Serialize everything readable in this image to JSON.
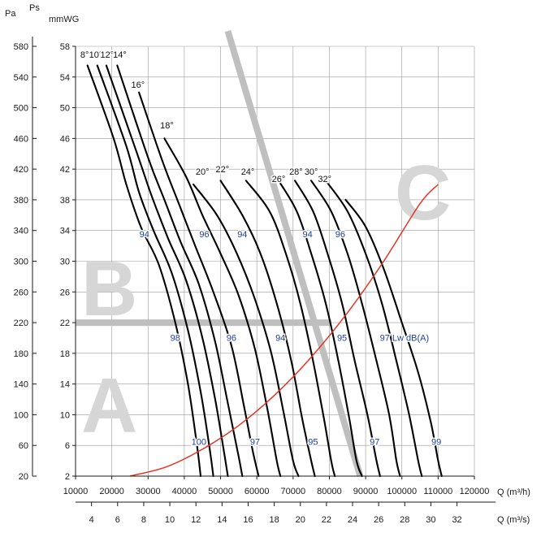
{
  "chart_data": {
    "type": "line",
    "axis_labels": {
      "pa_unit": "Pa",
      "ps_unit": "Ps",
      "mmwg_unit": "mmWG",
      "q_m3h_unit": "Q (m³/h)",
      "q_m3s_unit": "Q (m³/s)"
    },
    "x_m3h": {
      "min": 10000,
      "max": 120000,
      "ticks": [
        10000,
        20000,
        30000,
        40000,
        50000,
        60000,
        70000,
        80000,
        90000,
        100000,
        110000,
        120000
      ]
    },
    "x_m3s_ticks": [
      4,
      6,
      8,
      10,
      12,
      14,
      16,
      18,
      20,
      22,
      24,
      26,
      28,
      30,
      32
    ],
    "y_mmwg": {
      "min": 2,
      "max": 58,
      "ticks": [
        2,
        6,
        10,
        14,
        18,
        22,
        26,
        30,
        34,
        38,
        42,
        46,
        50,
        54,
        58
      ]
    },
    "y_pa_ticks": [
      20,
      60,
      100,
      140,
      180,
      220,
      260,
      300,
      340,
      380,
      420,
      460,
      500,
      540,
      580
    ],
    "zones": [
      "A",
      "B",
      "C"
    ],
    "blade_curves": [
      {
        "label": "8°",
        "points": [
          [
            13300,
            55.5
          ],
          [
            20500,
            46
          ],
          [
            24000,
            40
          ],
          [
            28000,
            34.5
          ],
          [
            33000,
            29.5
          ],
          [
            37500,
            22
          ],
          [
            41000,
            14
          ],
          [
            43500,
            6
          ],
          [
            44500,
            2
          ]
        ]
      },
      {
        "label": "10°",
        "points": [
          [
            16000,
            55.5
          ],
          [
            24000,
            45
          ],
          [
            27500,
            39
          ],
          [
            31500,
            34
          ],
          [
            36500,
            28.5
          ],
          [
            41000,
            21
          ],
          [
            44500,
            13
          ],
          [
            47000,
            5.5
          ],
          [
            48000,
            2
          ]
        ]
      },
      {
        "label": "12°",
        "points": [
          [
            18500,
            55.5
          ],
          [
            27000,
            44
          ],
          [
            31000,
            38.5
          ],
          [
            35500,
            33
          ],
          [
            40500,
            27.5
          ],
          [
            45000,
            20
          ],
          [
            48500,
            12
          ],
          [
            51000,
            5
          ],
          [
            52000,
            2
          ]
        ]
      },
      {
        "label": "14°",
        "points": [
          [
            21500,
            55.5
          ],
          [
            30000,
            43.5
          ],
          [
            34500,
            38
          ],
          [
            39000,
            32.5
          ],
          [
            44000,
            27
          ],
          [
            48500,
            19.5
          ],
          [
            52000,
            11.5
          ],
          [
            55000,
            4.5
          ],
          [
            56000,
            2
          ]
        ]
      },
      {
        "label": "16°",
        "points": [
          [
            27500,
            52
          ],
          [
            34000,
            43
          ],
          [
            38500,
            37.5
          ],
          [
            43000,
            32
          ],
          [
            48000,
            26
          ],
          [
            53000,
            19
          ],
          [
            56500,
            11
          ],
          [
            59000,
            5
          ],
          [
            60500,
            2
          ]
        ]
      },
      {
        "label": "18°",
        "points": [
          [
            34500,
            46
          ],
          [
            40500,
            41
          ],
          [
            45000,
            36
          ],
          [
            50000,
            31
          ],
          [
            55000,
            25.5
          ],
          [
            59500,
            18.5
          ],
          [
            63000,
            10.5
          ],
          [
            65500,
            4
          ],
          [
            66500,
            2
          ]
        ]
      },
      {
        "label": "20°",
        "points": [
          [
            42500,
            40
          ],
          [
            49000,
            36
          ],
          [
            54500,
            31
          ],
          [
            59500,
            25
          ],
          [
            64000,
            18
          ],
          [
            67500,
            10
          ],
          [
            70000,
            4
          ],
          [
            71500,
            2
          ]
        ]
      },
      {
        "label": "22°",
        "points": [
          [
            50000,
            40.5
          ],
          [
            56000,
            36
          ],
          [
            61000,
            31
          ],
          [
            65500,
            24.5
          ],
          [
            69500,
            17
          ],
          [
            72500,
            9.5
          ],
          [
            75000,
            4
          ],
          [
            76000,
            2
          ]
        ]
      },
      {
        "label": "24°",
        "points": [
          [
            57000,
            40.5
          ],
          [
            63500,
            36.5
          ],
          [
            68000,
            31
          ],
          [
            72000,
            24.5
          ],
          [
            75500,
            17
          ],
          [
            78500,
            9.5
          ],
          [
            80500,
            4
          ],
          [
            81500,
            2
          ]
        ]
      },
      {
        "label": "26°",
        "points": [
          [
            66000,
            40.5
          ],
          [
            71000,
            36.5
          ],
          [
            75000,
            31
          ],
          [
            79000,
            24.5
          ],
          [
            82500,
            17
          ],
          [
            85500,
            9.5
          ],
          [
            87500,
            4
          ],
          [
            89000,
            2
          ]
        ]
      },
      {
        "label": "28°",
        "points": [
          [
            70500,
            40.5
          ],
          [
            75500,
            36.5
          ],
          [
            79500,
            31
          ],
          [
            83500,
            24.5
          ],
          [
            87000,
            17
          ],
          [
            90500,
            10
          ],
          [
            93000,
            4
          ],
          [
            94000,
            2
          ]
        ]
      },
      {
        "label": "30°",
        "points": [
          [
            75000,
            40.5
          ],
          [
            80500,
            36.5
          ],
          [
            85000,
            31
          ],
          [
            89000,
            24.5
          ],
          [
            93000,
            17
          ],
          [
            96500,
            10
          ],
          [
            98500,
            4
          ],
          [
            99500,
            2
          ]
        ]
      },
      {
        "label": "32°",
        "points": [
          [
            79000,
            40.5
          ],
          [
            85000,
            36.5
          ],
          [
            90000,
            31
          ],
          [
            94500,
            24.5
          ],
          [
            98500,
            17
          ],
          [
            102000,
            10
          ],
          [
            104500,
            4
          ],
          [
            105500,
            2
          ]
        ]
      },
      {
        "label": "",
        "points": [
          [
            84500,
            38
          ],
          [
            90000,
            34.5
          ],
          [
            95000,
            29
          ],
          [
            100000,
            22
          ],
          [
            104500,
            15.5
          ],
          [
            108000,
            9
          ],
          [
            110000,
            4
          ],
          [
            111000,
            2
          ]
        ]
      }
    ],
    "angle_labels": [
      {
        "text": "8°",
        "at": [
          12500,
          56.5
        ]
      },
      {
        "text": "10°",
        "at": [
          15600,
          56.5
        ]
      },
      {
        "text": "12°",
        "at": [
          18700,
          56.5
        ]
      },
      {
        "text": "14°",
        "at": [
          22200,
          56.5
        ]
      },
      {
        "text": "16°",
        "at": [
          27200,
          52.6
        ]
      },
      {
        "text": "18°",
        "at": [
          35200,
          47.3
        ]
      },
      {
        "text": "20°",
        "at": [
          45000,
          41.3
        ]
      },
      {
        "text": "22°",
        "at": [
          50500,
          41.6
        ]
      },
      {
        "text": "24°",
        "at": [
          57500,
          41.3
        ]
      },
      {
        "text": "26°",
        "at": [
          66000,
          40.3
        ]
      },
      {
        "text": "28°",
        "at": [
          70800,
          41.3
        ]
      },
      {
        "text": "30°",
        "at": [
          75000,
          41.3
        ]
      },
      {
        "text": "32°",
        "at": [
          78700,
          40.3
        ]
      }
    ],
    "lw_labels": [
      {
        "text": "94",
        "at": [
          29000,
          33.1
        ]
      },
      {
        "text": "96",
        "at": [
          45500,
          33.1
        ]
      },
      {
        "text": "94",
        "at": [
          56000,
          33.1
        ]
      },
      {
        "text": "94",
        "at": [
          74000,
          33.1
        ]
      },
      {
        "text": "96",
        "at": [
          83000,
          33.1
        ]
      },
      {
        "text": "98",
        "at": [
          37500,
          19.6
        ]
      },
      {
        "text": "96",
        "at": [
          53000,
          19.6
        ]
      },
      {
        "text": "94",
        "at": [
          66500,
          19.6
        ]
      },
      {
        "text": "95",
        "at": [
          83500,
          19.6
        ]
      },
      {
        "text": "97 Lw dB(A)",
        "at": [
          95500,
          19.6
        ]
      },
      {
        "text": "100",
        "at": [
          44000,
          6.1
        ]
      },
      {
        "text": "97",
        "at": [
          59500,
          6.1
        ]
      },
      {
        "text": "95",
        "at": [
          75500,
          6.1
        ]
      },
      {
        "text": "97",
        "at": [
          92500,
          6.1
        ]
      },
      {
        "text": "99",
        "at": [
          109500,
          6.1
        ]
      }
    ],
    "system_curve": {
      "color": "#e63323",
      "points": [
        [
          25000,
          2
        ],
        [
          35000,
          3.2
        ],
        [
          45000,
          5.5
        ],
        [
          55000,
          8.6
        ],
        [
          65000,
          12.6
        ],
        [
          75000,
          17.5
        ],
        [
          85000,
          23.3
        ],
        [
          95000,
          30
        ],
        [
          105000,
          37.5
        ],
        [
          110000,
          40
        ]
      ]
    },
    "zone_boundaries": {
      "color": "#bfbfbf",
      "horizontal_at_mmwg": 22,
      "horizontal_from_x": 10000,
      "horizontal_to_x": 80500,
      "diagonal": [
        [
          52000,
          60
        ],
        [
          88500,
          2
        ]
      ]
    },
    "grid": true,
    "legend": "none"
  }
}
